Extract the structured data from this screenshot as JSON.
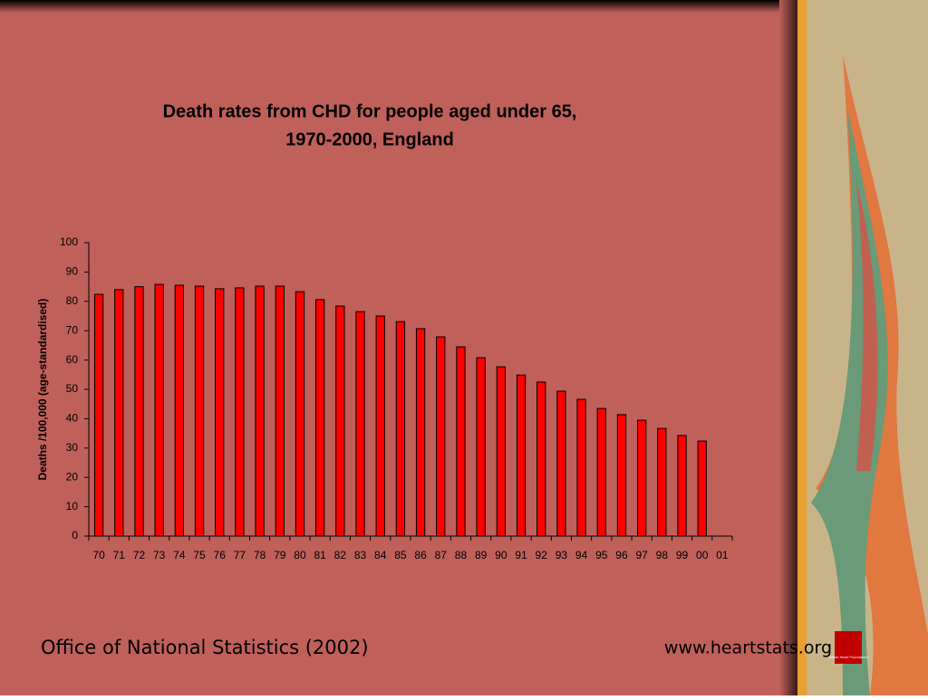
{
  "chart_data": {
    "type": "bar",
    "title": [
      "Death rates from CHD for people aged under 65,",
      "1970-2000, England"
    ],
    "y_label": "Deaths /100,000 (age-standardised)",
    "categories": [
      "70",
      "71",
      "72",
      "73",
      "74",
      "75",
      "76",
      "77",
      "78",
      "79",
      "80",
      "81",
      "82",
      "83",
      "84",
      "85",
      "86",
      "87",
      "88",
      "89",
      "90",
      "91",
      "92",
      "93",
      "94",
      "95",
      "96",
      "97",
      "98",
      "99",
      "00",
      "01"
    ],
    "values": [
      82.4,
      84,
      85,
      85.8,
      85.5,
      85.2,
      84.3,
      84.6,
      85.2,
      85.2,
      83.3,
      80.6,
      78.4,
      76.5,
      75,
      73.1,
      70.7,
      67.9,
      64.5,
      60.8,
      57.7,
      54.9,
      52.5,
      49.4,
      46.6,
      43.5,
      41.4,
      39.5,
      36.7,
      34.3,
      32.4,
      null
    ],
    "color": "#ff0000",
    "ylim": [
      0,
      100
    ],
    "yticks": [
      0,
      10,
      20,
      30,
      40,
      50,
      60,
      70,
      80,
      90,
      100
    ]
  },
  "footer": {
    "source": "Office of National Statistics (2002)",
    "website": "www.heartstats.org",
    "logo": "British Heart Foundation"
  }
}
